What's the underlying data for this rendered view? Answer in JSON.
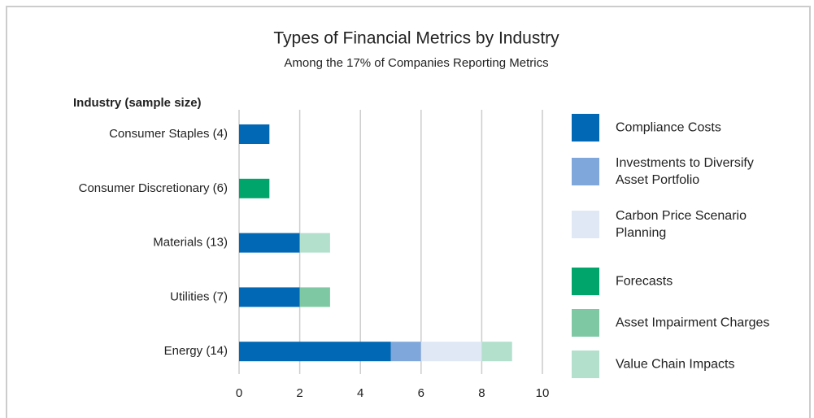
{
  "chart_data": {
    "type": "stacked_barh",
    "title": "Types of Financial Metrics by Industry",
    "subtitle": "Among the 17% of Companies Reporting Metrics",
    "y_label": "Industry (sample size)",
    "categories": [
      "Consumer Staples (4)",
      "Consumer Discretionary (6)",
      "Materials (13)",
      "Utilities (7)",
      "Energy (14)"
    ],
    "series": [
      {
        "name": "Compliance Costs",
        "color": "#0068b5",
        "values": [
          1,
          0,
          2,
          2,
          5
        ]
      },
      {
        "name": "Investments to Diversify Asset Portfolio",
        "color": "#7fa7db",
        "values": [
          0,
          0,
          0,
          0,
          1
        ]
      },
      {
        "name": "Carbon Price Scenario Planning",
        "color": "#e0e8f5",
        "values": [
          0,
          0,
          0,
          0,
          2
        ]
      },
      {
        "name": "Forecasts",
        "color": "#00a56b",
        "values": [
          0,
          1,
          0,
          0,
          0
        ]
      },
      {
        "name": "Asset Impairment Charges",
        "color": "#7fc8a4",
        "values": [
          0,
          0,
          0,
          1,
          0
        ]
      },
      {
        "name": "Value Chain Impacts",
        "color": "#b2e0cc",
        "values": [
          0,
          0,
          1,
          0,
          1
        ]
      }
    ],
    "xlim": [
      0,
      10
    ],
    "xticks": [
      0,
      2,
      4,
      6,
      8,
      10
    ],
    "grid": true,
    "legend": "right"
  }
}
